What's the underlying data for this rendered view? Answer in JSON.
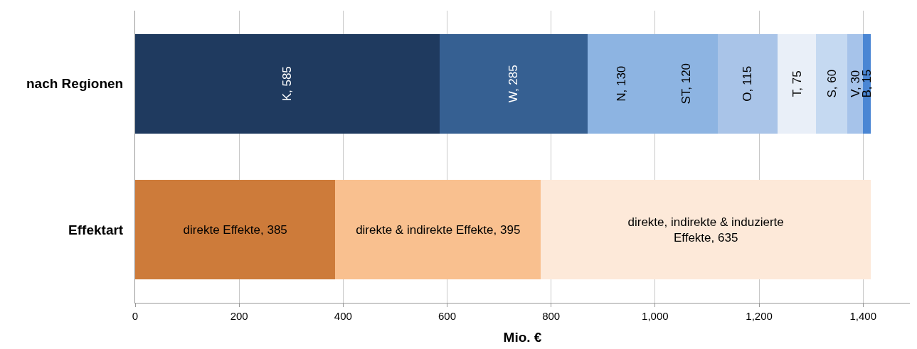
{
  "chart_data": {
    "type": "bar",
    "orientation": "horizontal",
    "stacked": true,
    "categories": [
      "nach Regionen",
      "Effektart"
    ],
    "xlabel": "Mio. €",
    "xlim": [
      0,
      1490
    ],
    "xticks": [
      0,
      200,
      400,
      600,
      800,
      {
        "value": 1000,
        "label": "1,000"
      },
      {
        "value": 1200,
        "label": "1,200"
      },
      {
        "value": 1400,
        "label": "1,400"
      }
    ],
    "grid": "x",
    "series": [
      {
        "color": "#1f3a5f",
        "values": [
          585,
          null
        ],
        "value_labels": [
          "K, 585",
          null
        ]
      },
      {
        "color": "#366092",
        "values": [
          285,
          null
        ],
        "value_labels": [
          "W, 285",
          null
        ]
      },
      {
        "color": "#8db4e2",
        "values": [
          130,
          null
        ],
        "value_labels": [
          "N, 130",
          null
        ]
      },
      {
        "color": "#8db4e2",
        "values": [
          120,
          null
        ],
        "value_labels": [
          "ST, 120",
          null
        ]
      },
      {
        "color": "#a9c4e8",
        "values": [
          115,
          null
        ],
        "value_labels": [
          "O, 115",
          null
        ]
      },
      {
        "color": "#e9eff8",
        "values": [
          75,
          null
        ],
        "value_labels": [
          "T, 75",
          null
        ]
      },
      {
        "color": "#c5d9f1",
        "values": [
          60,
          null
        ],
        "value_labels": [
          "S, 60",
          null
        ]
      },
      {
        "color": "#a6c3ea",
        "values": [
          30,
          null
        ],
        "value_labels": [
          "V, 30",
          null
        ]
      },
      {
        "color": "#4a86d4",
        "values": [
          15,
          null
        ],
        "value_labels": [
          "B, 15",
          null
        ]
      },
      {
        "color": "#cd7b3a",
        "values": [
          null,
          385
        ],
        "value_labels": [
          null,
          "direkte Effekte, 385"
        ]
      },
      {
        "color": "#f9c08f",
        "values": [
          null,
          395
        ],
        "value_labels": [
          null,
          "direkte & indirekte Effekte, 395"
        ]
      },
      {
        "color": "#fde9d9",
        "values": [
          null,
          635
        ],
        "value_labels": [
          null,
          "direkte, indirekte & induzierte\nEffekte, 635"
        ]
      }
    ]
  }
}
